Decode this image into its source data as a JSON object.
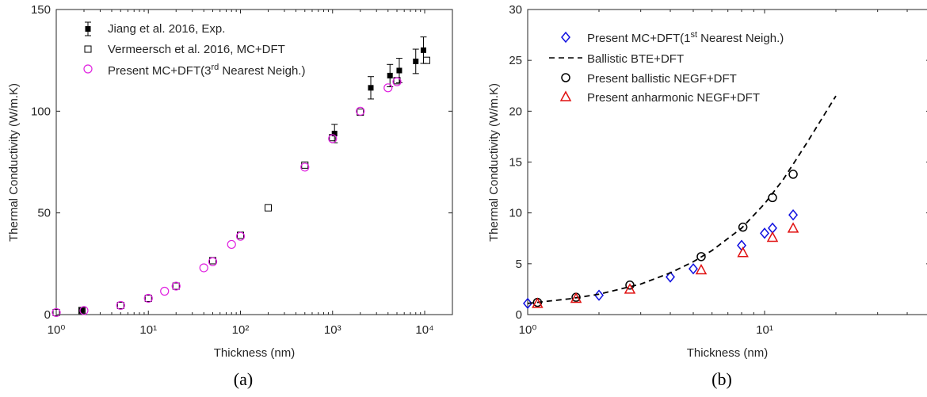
{
  "chart_data": [
    {
      "type": "scatter",
      "panel_label": "(a)",
      "xlabel": "Thickness (nm)",
      "ylabel": "Thermal Conductivity (W/m.K)",
      "xscale": "log",
      "xlim": [
        1,
        20000
      ],
      "ylim": [
        0,
        150
      ],
      "xticks": [
        1,
        10,
        100,
        1000,
        10000
      ],
      "yticks": [
        0,
        50,
        100,
        150
      ],
      "legend_position": "top-left",
      "series": [
        {
          "name": "Jiang et al. 2016, Exp.",
          "marker": "filled-square",
          "color": "#000000",
          "x": [
            1.9,
            1050,
            2600,
            4200,
            5300,
            8000,
            9700
          ],
          "y": [
            2.0,
            89.0,
            111.5,
            117.5,
            120.0,
            124.5,
            130.0
          ],
          "err": [
            0,
            4.5,
            5.5,
            5.5,
            6.0,
            6.0,
            6.5
          ]
        },
        {
          "name": "Vermeersch et al. 2016, MC+DFT",
          "marker": "open-square",
          "color": "#000000",
          "x": [
            1,
            1.9,
            5,
            10,
            20,
            50,
            100,
            200,
            500,
            1000,
            2000,
            5000,
            10500
          ],
          "y": [
            1.0,
            2.0,
            4.5,
            8.0,
            14.0,
            26.5,
            39.0,
            52.5,
            73.5,
            87.0,
            99.5,
            115.0,
            125.0
          ]
        },
        {
          "name": "Present MC+DFT(3rd Nearest Neigh.)",
          "marker": "open-circle",
          "color": "#e020e0",
          "x": [
            1,
            2,
            5,
            10,
            15,
            20,
            40,
            50,
            80,
            100,
            500,
            1000,
            2000,
            4000,
            5000
          ],
          "y": [
            1.0,
            2.0,
            4.5,
            8.0,
            11.5,
            14.0,
            23.0,
            26.0,
            34.5,
            38.5,
            72.5,
            86.5,
            100.0,
            111.5,
            114.5
          ]
        }
      ]
    },
    {
      "type": "scatter",
      "panel_label": "(b)",
      "xlabel": "Thickness (nm)",
      "ylabel": "Thermal Conductivity (W/m.K)",
      "xscale": "log",
      "xlim": [
        1,
        50
      ],
      "ylim": [
        0,
        30
      ],
      "xticks": [
        1,
        10
      ],
      "yticks": [
        0,
        5,
        10,
        15,
        20,
        25,
        30
      ],
      "legend_position": "top-left",
      "series": [
        {
          "name": "Present MC+DFT(1st Nearest Neigh.)",
          "marker": "open-diamond",
          "color": "#1010e0",
          "x": [
            1.0,
            2.0,
            4.0,
            5.0,
            8.0,
            10.0,
            10.8,
            13.2
          ],
          "y": [
            1.1,
            1.9,
            3.7,
            4.5,
            6.8,
            8.0,
            8.5,
            9.8
          ]
        },
        {
          "name": "Ballistic BTE+DFT",
          "marker": "dashed-line",
          "color": "#000000",
          "x": [
            1.0,
            1.5,
            2,
            3,
            4,
            5,
            6,
            8,
            10,
            12,
            15,
            20
          ],
          "y": [
            1.1,
            1.55,
            2.0,
            3.0,
            4.1,
            5.2,
            6.3,
            8.5,
            10.9,
            13.3,
            16.8,
            21.5
          ]
        },
        {
          "name": "Present ballistic NEGF+DFT",
          "marker": "open-circle",
          "color": "#000000",
          "x": [
            1.1,
            1.6,
            2.7,
            5.4,
            8.1,
            10.8,
            13.2
          ],
          "y": [
            1.2,
            1.7,
            2.9,
            5.7,
            8.6,
            11.5,
            13.8
          ]
        },
        {
          "name": "Present anharmonic NEGF+DFT",
          "marker": "open-triangle",
          "color": "#e01010",
          "x": [
            1.1,
            1.6,
            2.7,
            5.4,
            8.1,
            10.8,
            13.2
          ],
          "y": [
            1.1,
            1.6,
            2.5,
            4.4,
            6.1,
            7.6,
            8.5
          ]
        }
      ]
    }
  ],
  "legend_a": {
    "item1": "Jiang et al. 2016, Exp.",
    "item2": "Vermeersch et al. 2016, MC+DFT",
    "item3_pre": "Present MC+DFT(3",
    "item3_sup": "rd",
    "item3_post": " Nearest Neigh.)"
  },
  "legend_b": {
    "item1_pre": "Present MC+DFT(1",
    "item1_sup": "st",
    "item1_post": " Nearest Neigh.)",
    "item2": "Ballistic BTE+DFT",
    "item3": "Present ballistic NEGF+DFT",
    "item4": "Present anharmonic NEGF+DFT"
  }
}
